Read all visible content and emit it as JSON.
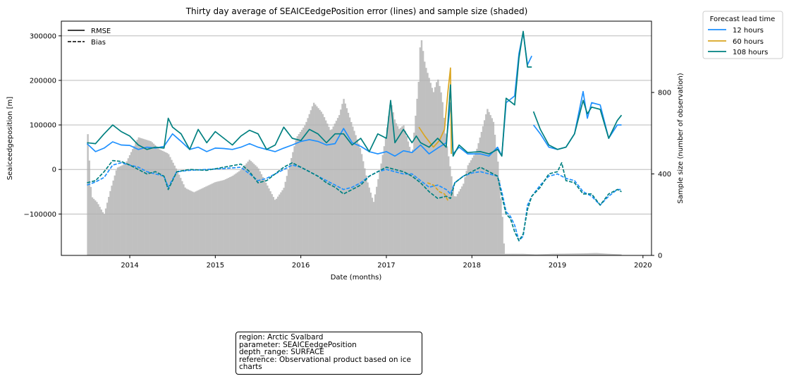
{
  "chart_data": {
    "type": "line",
    "title": "Thirty day average of SEAICEedgePosition error (lines) and sample size (shaded)",
    "xlabel": "Date (months)",
    "ylabel": "Seaiceedgeposition [m]",
    "y2label": "Sample size (number of observation)",
    "x_ticks": [
      "2014",
      "2015",
      "2016",
      "2017",
      "2018",
      "2019",
      "2020"
    ],
    "y_ticks": [
      "300000",
      "200000",
      "100000",
      "0",
      "−100000"
    ],
    "y2_ticks": [
      "800",
      "400",
      "0"
    ],
    "xlim": [
      2013.2,
      2020.1
    ],
    "ylim": [
      -193000,
      333000
    ],
    "y2lim": [
      0,
      1150
    ],
    "grid": "horizontal",
    "style_legend": {
      "entries": [
        "RMSE",
        "Bias"
      ],
      "placement": "upper-left"
    },
    "lead_legend": {
      "title": "Forecast lead time",
      "placement": "outside-upper-right"
    },
    "series": [
      {
        "name": "12 hours",
        "color": "#1e90ff"
      },
      {
        "name": "60 hours",
        "color": "#daa520"
      },
      {
        "name": "108 hours",
        "color": "#008080"
      }
    ],
    "sample_size": {
      "color": "#c0c0c0",
      "points": [
        [
          2013.5,
          660
        ],
        [
          2013.55,
          290
        ],
        [
          2013.62,
          260
        ],
        [
          2013.7,
          200
        ],
        [
          2013.78,
          330
        ],
        [
          2013.85,
          430
        ],
        [
          2013.95,
          450
        ],
        [
          2014.1,
          580
        ],
        [
          2014.25,
          560
        ],
        [
          2014.35,
          520
        ],
        [
          2014.45,
          500
        ],
        [
          2014.55,
          420
        ],
        [
          2014.65,
          330
        ],
        [
          2014.75,
          310
        ],
        [
          2014.85,
          330
        ],
        [
          2015.0,
          360
        ],
        [
          2015.1,
          370
        ],
        [
          2015.2,
          390
        ],
        [
          2015.3,
          420
        ],
        [
          2015.4,
          470
        ],
        [
          2015.5,
          430
        ],
        [
          2015.6,
          350
        ],
        [
          2015.7,
          270
        ],
        [
          2015.8,
          330
        ],
        [
          2015.95,
          580
        ],
        [
          2016.05,
          640
        ],
        [
          2016.15,
          750
        ],
        [
          2016.25,
          700
        ],
        [
          2016.35,
          610
        ],
        [
          2016.45,
          690
        ],
        [
          2016.5,
          770
        ],
        [
          2016.6,
          640
        ],
        [
          2016.7,
          520
        ],
        [
          2016.78,
          360
        ],
        [
          2016.85,
          260
        ],
        [
          2016.93,
          430
        ],
        [
          2017.0,
          600
        ],
        [
          2017.05,
          760
        ],
        [
          2017.1,
          660
        ],
        [
          2017.15,
          620
        ],
        [
          2017.2,
          640
        ],
        [
          2017.3,
          490
        ],
        [
          2017.38,
          870
        ],
        [
          2017.4,
          1090
        ],
        [
          2017.45,
          940
        ],
        [
          2017.55,
          800
        ],
        [
          2017.6,
          870
        ],
        [
          2017.65,
          780
        ],
        [
          2017.7,
          560
        ],
        [
          2017.8,
          280
        ],
        [
          2017.9,
          350
        ],
        [
          2017.95,
          440
        ],
        [
          2018.05,
          510
        ],
        [
          2018.12,
          620
        ],
        [
          2018.18,
          720
        ],
        [
          2018.25,
          660
        ],
        [
          2018.3,
          480
        ],
        [
          2018.36,
          170
        ],
        [
          2018.38,
          8
        ],
        [
          2018.6,
          8
        ],
        [
          2018.75,
          5
        ],
        [
          2018.95,
          8
        ],
        [
          2019.3,
          10
        ],
        [
          2019.45,
          12
        ],
        [
          2019.6,
          8
        ],
        [
          2019.75,
          5
        ]
      ]
    },
    "rmse_12h": [
      [
        2013.5,
        58000
      ],
      [
        2013.6,
        40000
      ],
      [
        2013.7,
        48000
      ],
      [
        2013.8,
        62000
      ],
      [
        2013.9,
        55000
      ],
      [
        2014.0,
        54000
      ],
      [
        2014.1,
        45000
      ],
      [
        2014.2,
        50000
      ],
      [
        2014.3,
        48000
      ],
      [
        2014.4,
        52000
      ],
      [
        2014.5,
        80000
      ],
      [
        2014.6,
        63000
      ],
      [
        2014.7,
        45000
      ],
      [
        2014.8,
        50000
      ],
      [
        2014.9,
        40000
      ],
      [
        2015.0,
        48000
      ],
      [
        2015.1,
        47000
      ],
      [
        2015.2,
        45000
      ],
      [
        2015.3,
        50000
      ],
      [
        2015.4,
        58000
      ],
      [
        2015.5,
        50000
      ],
      [
        2015.6,
        45000
      ],
      [
        2015.7,
        40000
      ],
      [
        2015.8,
        48000
      ],
      [
        2015.9,
        55000
      ],
      [
        2016.0,
        63000
      ],
      [
        2016.1,
        67000
      ],
      [
        2016.2,
        63000
      ],
      [
        2016.3,
        55000
      ],
      [
        2016.4,
        58000
      ],
      [
        2016.5,
        92000
      ],
      [
        2016.6,
        60000
      ],
      [
        2016.7,
        52000
      ],
      [
        2016.8,
        40000
      ],
      [
        2016.9,
        35000
      ],
      [
        2017.0,
        40000
      ],
      [
        2017.1,
        30000
      ],
      [
        2017.2,
        42000
      ],
      [
        2017.3,
        38000
      ],
      [
        2017.4,
        55000
      ],
      [
        2017.5,
        35000
      ],
      [
        2017.6,
        48000
      ],
      [
        2017.7,
        60000
      ],
      [
        2017.75,
        150000
      ],
      [
        2017.78,
        35000
      ],
      [
        2017.85,
        50000
      ],
      [
        2017.95,
        35000
      ],
      [
        2018.1,
        35000
      ],
      [
        2018.2,
        30000
      ],
      [
        2018.3,
        50000
      ],
      [
        2018.35,
        30000
      ],
      [
        2018.4,
        150000
      ],
      [
        2018.5,
        165000
      ],
      [
        2018.55,
        260000
      ],
      [
        2018.6,
        308000
      ],
      [
        2018.65,
        235000
      ],
      [
        2018.7,
        255000
      ],
      [
        null,
        null
      ],
      [
        2018.72,
        100000
      ],
      [
        2018.8,
        80000
      ],
      [
        2018.9,
        50000
      ],
      [
        2019.0,
        45000
      ],
      [
        2019.1,
        50000
      ],
      [
        2019.2,
        80000
      ],
      [
        2019.3,
        175000
      ],
      [
        2019.35,
        115000
      ],
      [
        2019.4,
        150000
      ],
      [
        2019.5,
        145000
      ],
      [
        2019.6,
        70000
      ],
      [
        2019.7,
        100000
      ],
      [
        2019.75,
        100000
      ]
    ],
    "rmse_108h": [
      [
        2013.5,
        60000
      ],
      [
        2013.6,
        58000
      ],
      [
        2013.7,
        80000
      ],
      [
        2013.8,
        100000
      ],
      [
        2013.9,
        85000
      ],
      [
        2014.0,
        75000
      ],
      [
        2014.1,
        55000
      ],
      [
        2014.2,
        45000
      ],
      [
        2014.3,
        50000
      ],
      [
        2014.4,
        48000
      ],
      [
        2014.45,
        115000
      ],
      [
        2014.5,
        95000
      ],
      [
        2014.6,
        80000
      ],
      [
        2014.7,
        45000
      ],
      [
        2014.8,
        90000
      ],
      [
        2014.9,
        60000
      ],
      [
        2015.0,
        85000
      ],
      [
        2015.1,
        70000
      ],
      [
        2015.2,
        55000
      ],
      [
        2015.3,
        75000
      ],
      [
        2015.4,
        88000
      ],
      [
        2015.5,
        80000
      ],
      [
        2015.6,
        45000
      ],
      [
        2015.7,
        55000
      ],
      [
        2015.8,
        95000
      ],
      [
        2015.9,
        70000
      ],
      [
        2016.0,
        65000
      ],
      [
        2016.1,
        90000
      ],
      [
        2016.2,
        80000
      ],
      [
        2016.3,
        60000
      ],
      [
        2016.4,
        80000
      ],
      [
        2016.5,
        80000
      ],
      [
        2016.6,
        55000
      ],
      [
        2016.7,
        70000
      ],
      [
        2016.8,
        40000
      ],
      [
        2016.9,
        80000
      ],
      [
        2017.0,
        70000
      ],
      [
        2017.05,
        155000
      ],
      [
        2017.1,
        60000
      ],
      [
        2017.2,
        90000
      ],
      [
        2017.3,
        60000
      ],
      [
        2017.35,
        75000
      ],
      [
        2017.4,
        60000
      ],
      [
        2017.5,
        50000
      ],
      [
        2017.6,
        70000
      ],
      [
        2017.7,
        50000
      ],
      [
        2017.75,
        190000
      ],
      [
        2017.78,
        30000
      ],
      [
        2017.85,
        55000
      ],
      [
        2017.95,
        38000
      ],
      [
        2018.1,
        40000
      ],
      [
        2018.2,
        35000
      ],
      [
        2018.3,
        45000
      ],
      [
        2018.35,
        30000
      ],
      [
        2018.4,
        160000
      ],
      [
        2018.5,
        145000
      ],
      [
        2018.55,
        250000
      ],
      [
        2018.6,
        310000
      ],
      [
        2018.65,
        230000
      ],
      [
        2018.7,
        230000
      ],
      [
        null,
        null
      ],
      [
        2018.72,
        130000
      ],
      [
        2018.8,
        90000
      ],
      [
        2018.9,
        55000
      ],
      [
        2019.0,
        45000
      ],
      [
        2019.1,
        50000
      ],
      [
        2019.2,
        80000
      ],
      [
        2019.3,
        155000
      ],
      [
        2019.35,
        125000
      ],
      [
        2019.4,
        140000
      ],
      [
        2019.5,
        135000
      ],
      [
        2019.6,
        70000
      ],
      [
        2019.7,
        110000
      ],
      [
        2019.75,
        122000
      ]
    ],
    "rmse_60h": [
      [
        2017.38,
        95000
      ],
      [
        2017.45,
        75000
      ],
      [
        2017.55,
        50000
      ],
      [
        2017.62,
        65000
      ],
      [
        2017.68,
        90000
      ],
      [
        2017.72,
        175000
      ],
      [
        2017.75,
        228000
      ],
      [
        2017.76,
        35000
      ]
    ],
    "bias_12h": [
      [
        2013.5,
        -35000
      ],
      [
        2013.6,
        -28000
      ],
      [
        2013.7,
        -18000
      ],
      [
        2013.8,
        10000
      ],
      [
        2013.9,
        15000
      ],
      [
        2014.0,
        10000
      ],
      [
        2014.1,
        5000
      ],
      [
        2014.2,
        -5000
      ],
      [
        2014.3,
        -10000
      ],
      [
        2014.4,
        -15000
      ],
      [
        2014.45,
        -40000
      ],
      [
        2014.55,
        -5000
      ],
      [
        2014.7,
        -2000
      ],
      [
        2014.9,
        0
      ],
      [
        2015.1,
        2000
      ],
      [
        2015.3,
        5000
      ],
      [
        2015.4,
        -10000
      ],
      [
        2015.5,
        -25000
      ],
      [
        2015.6,
        -20000
      ],
      [
        2015.7,
        -10000
      ],
      [
        2015.8,
        0
      ],
      [
        2015.9,
        10000
      ],
      [
        2016.0,
        5000
      ],
      [
        2016.1,
        -5000
      ],
      [
        2016.2,
        -15000
      ],
      [
        2016.3,
        -25000
      ],
      [
        2016.4,
        -35000
      ],
      [
        2016.5,
        -45000
      ],
      [
        2016.6,
        -40000
      ],
      [
        2016.7,
        -30000
      ],
      [
        2016.8,
        -15000
      ],
      [
        2016.9,
        -5000
      ],
      [
        2017.0,
        0
      ],
      [
        2017.1,
        -5000
      ],
      [
        2017.2,
        -10000
      ],
      [
        2017.3,
        -10000
      ],
      [
        2017.4,
        -25000
      ],
      [
        2017.5,
        -40000
      ],
      [
        2017.6,
        -35000
      ],
      [
        2017.7,
        -45000
      ],
      [
        2017.75,
        -55000
      ],
      [
        2017.8,
        -30000
      ],
      [
        2017.9,
        -15000
      ],
      [
        2018.0,
        -8000
      ],
      [
        2018.1,
        -5000
      ],
      [
        2018.2,
        -10000
      ],
      [
        2018.3,
        -15000
      ],
      [
        2018.35,
        -50000
      ],
      [
        2018.4,
        -95000
      ],
      [
        2018.45,
        -105000
      ],
      [
        2018.5,
        -125000
      ],
      [
        2018.55,
        -160000
      ],
      [
        2018.6,
        -150000
      ],
      [
        2018.65,
        -80000
      ],
      [
        2018.7,
        -60000
      ],
      [
        2018.8,
        -35000
      ],
      [
        2018.9,
        -15000
      ],
      [
        2019.0,
        -10000
      ],
      [
        2019.1,
        -20000
      ],
      [
        2019.2,
        -25000
      ],
      [
        2019.3,
        -50000
      ],
      [
        2019.4,
        -60000
      ],
      [
        2019.5,
        -80000
      ],
      [
        2019.6,
        -60000
      ],
      [
        2019.7,
        -45000
      ],
      [
        2019.75,
        -45000
      ]
    ],
    "bias_108h": [
      [
        2013.5,
        -30000
      ],
      [
        2013.6,
        -25000
      ],
      [
        2013.7,
        -5000
      ],
      [
        2013.8,
        20000
      ],
      [
        2013.9,
        18000
      ],
      [
        2014.0,
        10000
      ],
      [
        2014.1,
        0
      ],
      [
        2014.2,
        -10000
      ],
      [
        2014.3,
        -5000
      ],
      [
        2014.4,
        -15000
      ],
      [
        2014.45,
        -45000
      ],
      [
        2014.55,
        -5000
      ],
      [
        2014.7,
        0
      ],
      [
        2014.9,
        -2000
      ],
      [
        2015.1,
        5000
      ],
      [
        2015.3,
        12000
      ],
      [
        2015.4,
        -5000
      ],
      [
        2015.5,
        -30000
      ],
      [
        2015.6,
        -25000
      ],
      [
        2015.7,
        -10000
      ],
      [
        2015.8,
        5000
      ],
      [
        2015.9,
        15000
      ],
      [
        2016.0,
        5000
      ],
      [
        2016.1,
        -5000
      ],
      [
        2016.2,
        -15000
      ],
      [
        2016.3,
        -30000
      ],
      [
        2016.4,
        -40000
      ],
      [
        2016.5,
        -55000
      ],
      [
        2016.6,
        -45000
      ],
      [
        2016.7,
        -35000
      ],
      [
        2016.8,
        -15000
      ],
      [
        2016.9,
        -5000
      ],
      [
        2017.0,
        5000
      ],
      [
        2017.1,
        0
      ],
      [
        2017.2,
        -5000
      ],
      [
        2017.3,
        -15000
      ],
      [
        2017.4,
        -30000
      ],
      [
        2017.5,
        -50000
      ],
      [
        2017.6,
        -65000
      ],
      [
        2017.7,
        -60000
      ],
      [
        2017.75,
        -65000
      ],
      [
        2017.8,
        -30000
      ],
      [
        2017.9,
        -15000
      ],
      [
        2018.0,
        -5000
      ],
      [
        2018.1,
        5000
      ],
      [
        2018.2,
        -5000
      ],
      [
        2018.3,
        -15000
      ],
      [
        2018.35,
        -60000
      ],
      [
        2018.4,
        -100000
      ],
      [
        2018.45,
        -110000
      ],
      [
        2018.5,
        -140000
      ],
      [
        2018.55,
        -160000
      ],
      [
        2018.6,
        -145000
      ],
      [
        2018.65,
        -90000
      ],
      [
        2018.7,
        -60000
      ],
      [
        2018.8,
        -40000
      ],
      [
        2018.9,
        -10000
      ],
      [
        2019.0,
        -5000
      ],
      [
        2019.05,
        15000
      ],
      [
        2019.1,
        -25000
      ],
      [
        2019.2,
        -30000
      ],
      [
        2019.3,
        -55000
      ],
      [
        2019.4,
        -55000
      ],
      [
        2019.5,
        -80000
      ],
      [
        2019.6,
        -55000
      ],
      [
        2019.7,
        -45000
      ],
      [
        2019.75,
        -50000
      ]
    ],
    "bias_60h": [
      [
        2017.48,
        -30000
      ],
      [
        2017.55,
        -35000
      ],
      [
        2017.62,
        -50000
      ],
      [
        2017.68,
        -55000
      ],
      [
        2017.72,
        -70000
      ]
    ]
  },
  "info_box": {
    "region": "region: Arctic Svalbard",
    "parameter": "parameter: SEAICEedgePosition",
    "depth_range": "depth_range: SURFACE",
    "reference": "reference: Observational product based on ice",
    "reference_cont": "charts"
  }
}
